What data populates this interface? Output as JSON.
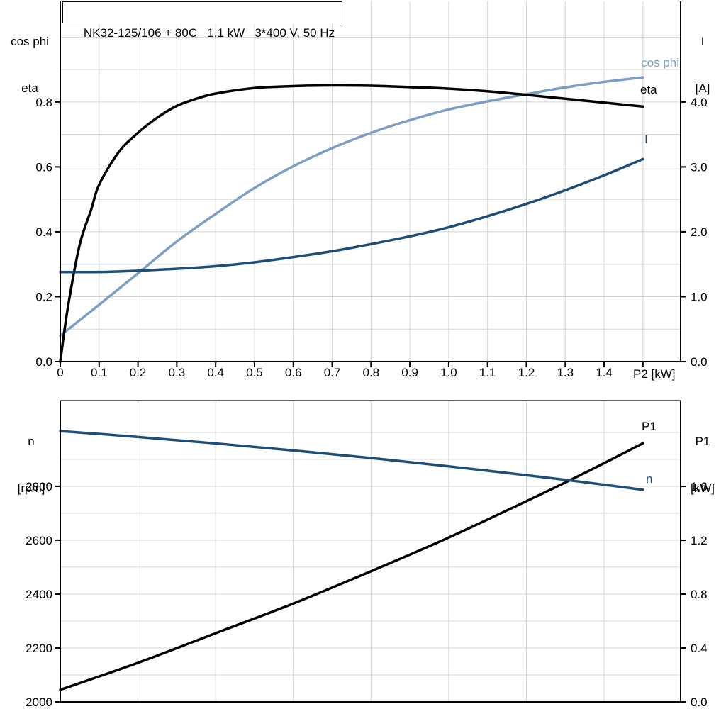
{
  "colors": {
    "black": "#000000",
    "navy": "#1d4e79",
    "light_blue": "#7b9fc4",
    "grid": "#d4d4d4",
    "border_gray": "#666666"
  },
  "chart_data": [
    {
      "type": "line",
      "title": "NK32-125/106 + 80C   1.1 kW   3*400 V, 50 Hz",
      "x_axis": {
        "label": "P2 [kW]",
        "min": 0,
        "max": 1.597,
        "tick_values": [
          0,
          0.1,
          0.2,
          0.3,
          0.4,
          0.5,
          0.6,
          0.7,
          0.8,
          0.9,
          1.0,
          1.1,
          1.2,
          1.3,
          1.4
        ],
        "tick_labels": [
          "0",
          "0.1",
          "0.2",
          "0.3",
          "0.4",
          "0.5",
          "0.6",
          "0.7",
          "0.8",
          "0.9",
          "1.0",
          "1.1",
          "1.2",
          "1.3",
          "1.4"
        ],
        "extra_tick_values": [
          1.5
        ],
        "grid_step": 0.1,
        "grid_max": 1.5
      },
      "y_left": {
        "label_lines": [
          "cos phi",
          "eta"
        ],
        "min": 0,
        "max": 1.11,
        "tick_values": [
          0,
          0.2,
          0.4,
          0.6,
          0.8
        ],
        "tick_labels": [
          "0.0",
          "0.2",
          "0.4",
          "0.6",
          "0.8"
        ],
        "grid_min": 0.1,
        "grid_step": 0.1,
        "grid_max": 1.0
      },
      "y_right": {
        "label_lines": [
          "I",
          "[A]"
        ],
        "min": 0,
        "max": 5.55,
        "tick_values": [
          0,
          1,
          2,
          3,
          4
        ],
        "tick_labels": [
          "0.0",
          "1.0",
          "2.0",
          "3.0",
          "4.0"
        ]
      },
      "series": [
        {
          "name": "cos phi",
          "axis": "left",
          "color_key": "light_blue",
          "points": [
            [
              0,
              0.08
            ],
            [
              0.1,
              0.175
            ],
            [
              0.2,
              0.272
            ],
            [
              0.3,
              0.37
            ],
            [
              0.4,
              0.455
            ],
            [
              0.5,
              0.535
            ],
            [
              0.6,
              0.602
            ],
            [
              0.7,
              0.658
            ],
            [
              0.8,
              0.705
            ],
            [
              0.9,
              0.744
            ],
            [
              1.0,
              0.777
            ],
            [
              1.1,
              0.802
            ],
            [
              1.2,
              0.824
            ],
            [
              1.3,
              0.845
            ],
            [
              1.4,
              0.862
            ],
            [
              1.5,
              0.876
            ]
          ]
        },
        {
          "name": "eta",
          "axis": "left",
          "color_key": "black",
          "points": [
            [
              0,
              0
            ],
            [
              0.02,
              0.17
            ],
            [
              0.05,
              0.36
            ],
            [
              0.08,
              0.47
            ],
            [
              0.1,
              0.545
            ],
            [
              0.15,
              0.645
            ],
            [
              0.2,
              0.705
            ],
            [
              0.25,
              0.752
            ],
            [
              0.3,
              0.788
            ],
            [
              0.35,
              0.81
            ],
            [
              0.4,
              0.826
            ],
            [
              0.5,
              0.843
            ],
            [
              0.6,
              0.849
            ],
            [
              0.7,
              0.851
            ],
            [
              0.8,
              0.85
            ],
            [
              0.9,
              0.846
            ],
            [
              1.0,
              0.841
            ],
            [
              1.1,
              0.833
            ],
            [
              1.2,
              0.822
            ],
            [
              1.3,
              0.81
            ],
            [
              1.4,
              0.798
            ],
            [
              1.5,
              0.786
            ]
          ]
        },
        {
          "name": "I",
          "axis": "right",
          "color_key": "navy",
          "points": [
            [
              0,
              1.38
            ],
            [
              0.1,
              1.38
            ],
            [
              0.2,
              1.4
            ],
            [
              0.3,
              1.43
            ],
            [
              0.4,
              1.47
            ],
            [
              0.5,
              1.53
            ],
            [
              0.6,
              1.61
            ],
            [
              0.7,
              1.7
            ],
            [
              0.8,
              1.81
            ],
            [
              0.9,
              1.93
            ],
            [
              1.0,
              2.07
            ],
            [
              1.1,
              2.24
            ],
            [
              1.2,
              2.43
            ],
            [
              1.3,
              2.64
            ],
            [
              1.4,
              2.87
            ],
            [
              1.5,
              3.12
            ]
          ]
        }
      ]
    },
    {
      "type": "line",
      "title": "",
      "x_axis": {
        "label": "",
        "min": 0,
        "max": 1.597,
        "tick_values": [],
        "tick_labels": [],
        "extra_tick_values": [],
        "grid_step": 0.2,
        "grid_max": 1.4
      },
      "y_left": {
        "label_lines": [
          "n",
          "[rpm]"
        ],
        "min": 2000,
        "max": 3118,
        "tick_values": [
          2000,
          2200,
          2400,
          2600,
          2800
        ],
        "tick_labels": [
          "2000",
          "2200",
          "2400",
          "2600",
          "2800"
        ],
        "grid_min": 2100,
        "grid_step": 100,
        "grid_max": 3000
      },
      "y_right": {
        "label_lines": [
          "P1",
          "[kW]"
        ],
        "min": 0,
        "max": 2.237,
        "tick_values": [
          0,
          0.4,
          0.8,
          1.2,
          1.6
        ],
        "tick_labels": [
          "0.0",
          "0.4",
          "0.8",
          "1.2",
          "1.6"
        ]
      },
      "series": [
        {
          "name": "P1",
          "axis": "right",
          "color_key": "black",
          "points": [
            [
              0,
              0.09
            ],
            [
              0.2,
              0.29
            ],
            [
              0.4,
              0.51
            ],
            [
              0.6,
              0.73
            ],
            [
              0.8,
              0.97
            ],
            [
              1.0,
              1.22
            ],
            [
              1.2,
              1.49
            ],
            [
              1.35,
              1.7
            ],
            [
              1.5,
              1.92
            ]
          ]
        },
        {
          "name": "n",
          "axis": "left",
          "color_key": "navy",
          "points": [
            [
              0,
              3005
            ],
            [
              0.2,
              2983
            ],
            [
              0.4,
              2959
            ],
            [
              0.6,
              2933
            ],
            [
              0.8,
              2905
            ],
            [
              1.0,
              2874
            ],
            [
              1.2,
              2841
            ],
            [
              1.35,
              2815
            ],
            [
              1.5,
              2787
            ]
          ]
        }
      ]
    }
  ]
}
